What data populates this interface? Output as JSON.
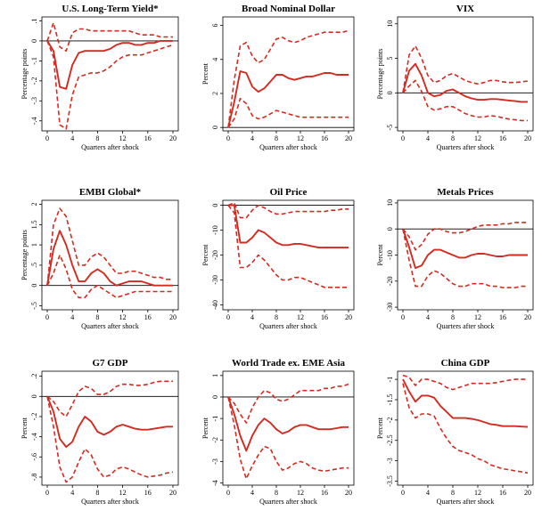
{
  "chart_data": [
    {
      "type": "line",
      "title": "U.S. Long-Term Yield*",
      "xlabel": "Quarters after shock",
      "ylabel": "Percentage points",
      "x": [
        0,
        1,
        2,
        3,
        4,
        5,
        6,
        7,
        8,
        9,
        10,
        11,
        12,
        13,
        14,
        15,
        16,
        17,
        18,
        19,
        20
      ],
      "xticks": [
        0,
        4,
        8,
        12,
        16,
        20
      ],
      "ylim": [
        -0.45,
        0.12
      ],
      "yticks": [
        -0.4,
        -0.3,
        -0.2,
        -0.1,
        0,
        0.1
      ],
      "ytick_labels": [
        "-.4",
        "-.3",
        "-.2",
        "-.1",
        "0",
        ".1"
      ],
      "series": [
        {
          "role": "estimate",
          "style": "solid",
          "values": [
            0,
            -0.05,
            -0.23,
            -0.24,
            -0.12,
            -0.06,
            -0.05,
            -0.05,
            -0.05,
            -0.05,
            -0.04,
            -0.02,
            -0.01,
            -0.01,
            -0.02,
            -0.02,
            -0.01,
            -0.01,
            0,
            0,
            0
          ]
        },
        {
          "role": "upper band",
          "style": "dashed",
          "values": [
            0,
            0.09,
            -0.03,
            -0.05,
            0.04,
            0.06,
            0.06,
            0.05,
            0.05,
            0.05,
            0.05,
            0.05,
            0.05,
            0.05,
            0.04,
            0.03,
            0.03,
            0.03,
            0.02,
            0.02,
            0.02
          ]
        },
        {
          "role": "lower band",
          "style": "dashed",
          "values": [
            0,
            -0.08,
            -0.42,
            -0.44,
            -0.27,
            -0.18,
            -0.17,
            -0.16,
            -0.16,
            -0.15,
            -0.13,
            -0.1,
            -0.08,
            -0.07,
            -0.07,
            -0.07,
            -0.06,
            -0.05,
            -0.04,
            -0.03,
            -0.02
          ]
        }
      ]
    },
    {
      "type": "line",
      "title": "Broad Nominal Dollar",
      "xlabel": "Quarters after shock",
      "ylabel": "Percent",
      "x": [
        0,
        1,
        2,
        3,
        4,
        5,
        6,
        7,
        8,
        9,
        10,
        11,
        12,
        13,
        14,
        15,
        16,
        17,
        18,
        19,
        20
      ],
      "xticks": [
        0,
        4,
        8,
        12,
        16,
        20
      ],
      "ylim": [
        -0.2,
        6.5
      ],
      "yticks": [
        0,
        2,
        4,
        6
      ],
      "ytick_labels": [
        "0",
        "2",
        "4",
        "6"
      ],
      "series": [
        {
          "role": "estimate",
          "style": "solid",
          "values": [
            0,
            1.5,
            3.3,
            3.2,
            2.4,
            2.1,
            2.3,
            2.7,
            3.1,
            3.1,
            2.9,
            2.8,
            2.9,
            3,
            3,
            3.1,
            3.2,
            3.2,
            3.1,
            3.1,
            3.1
          ]
        },
        {
          "role": "upper band",
          "style": "dashed",
          "values": [
            0,
            2.8,
            4.8,
            5.0,
            4.2,
            3.8,
            4.0,
            4.6,
            5.2,
            5.3,
            5.1,
            5.0,
            5.1,
            5.3,
            5.4,
            5.5,
            5.6,
            5.6,
            5.6,
            5.6,
            5.7
          ]
        },
        {
          "role": "lower band",
          "style": "dashed",
          "values": [
            0,
            0.5,
            1.7,
            1.4,
            0.7,
            0.5,
            0.6,
            0.8,
            1.0,
            0.9,
            0.8,
            0.7,
            0.6,
            0.6,
            0.6,
            0.6,
            0.6,
            0.6,
            0.6,
            0.6,
            0.6
          ]
        }
      ]
    },
    {
      "type": "line",
      "title": "VIX",
      "xlabel": "Quarters after shock",
      "ylabel": "Percentage points",
      "x": [
        0,
        1,
        2,
        3,
        4,
        5,
        6,
        7,
        8,
        9,
        10,
        11,
        12,
        13,
        14,
        15,
        16,
        17,
        18,
        19,
        20
      ],
      "xticks": [
        0,
        4,
        8,
        12,
        16,
        20
      ],
      "ylim": [
        -5.5,
        11
      ],
      "yticks": [
        -5,
        0,
        5,
        10
      ],
      "ytick_labels": [
        "-5",
        "0",
        "5",
        "10"
      ],
      "series": [
        {
          "role": "estimate",
          "style": "solid",
          "values": [
            0,
            3.2,
            4.2,
            2.5,
            0,
            -0.5,
            -0.3,
            0.3,
            0.5,
            0,
            -0.5,
            -0.8,
            -1,
            -1,
            -0.9,
            -0.9,
            -1,
            -1.1,
            -1.2,
            -1.3,
            -1.3
          ]
        },
        {
          "role": "upper band",
          "style": "dashed",
          "values": [
            0,
            5.5,
            6.8,
            5.0,
            2.5,
            1.5,
            1.8,
            2.5,
            2.8,
            2.3,
            1.8,
            1.5,
            1.3,
            1.5,
            1.8,
            1.8,
            1.6,
            1.5,
            1.5,
            1.6,
            1.7
          ]
        },
        {
          "role": "lower band",
          "style": "dashed",
          "values": [
            0,
            1.0,
            1.8,
            0.2,
            -2.0,
            -2.5,
            -2.3,
            -2.0,
            -2.0,
            -2.5,
            -3.0,
            -3.3,
            -3.5,
            -3.5,
            -3.3,
            -3.4,
            -3.6,
            -3.8,
            -3.9,
            -4.0,
            -4.0
          ]
        }
      ]
    },
    {
      "type": "line",
      "title": "EMBI Global*",
      "xlabel": "Quarters after shock",
      "ylabel": "Percentage points",
      "x": [
        0,
        1,
        2,
        3,
        4,
        5,
        6,
        7,
        8,
        9,
        10,
        11,
        12,
        13,
        14,
        15,
        16,
        17,
        18,
        19,
        20
      ],
      "xticks": [
        0,
        4,
        8,
        12,
        16,
        20
      ],
      "ylim": [
        -0.6,
        2.1
      ],
      "yticks": [
        -0.5,
        0,
        0.5,
        1,
        1.5,
        2
      ],
      "ytick_labels": [
        "-.5",
        "0",
        ".5",
        "1",
        "1.5",
        "2"
      ],
      "series": [
        {
          "role": "estimate",
          "style": "solid",
          "values": [
            0,
            0.9,
            1.35,
            1.0,
            0.5,
            0.1,
            0.1,
            0.3,
            0.4,
            0.3,
            0.1,
            0,
            0.05,
            0.1,
            0.1,
            0.1,
            0.05,
            0,
            0,
            0,
            0
          ]
        },
        {
          "role": "upper band",
          "style": "dashed",
          "values": [
            0,
            1.5,
            1.9,
            1.7,
            1.1,
            0.5,
            0.5,
            0.7,
            0.8,
            0.7,
            0.5,
            0.3,
            0.3,
            0.35,
            0.35,
            0.3,
            0.25,
            0.2,
            0.2,
            0.15,
            0.15
          ]
        },
        {
          "role": "lower band",
          "style": "dashed",
          "values": [
            0,
            0.3,
            0.75,
            0.4,
            -0.1,
            -0.3,
            -0.3,
            -0.1,
            0,
            -0.1,
            -0.2,
            -0.3,
            -0.25,
            -0.2,
            -0.15,
            -0.15,
            -0.15,
            -0.15,
            -0.15,
            -0.15,
            -0.15
          ]
        }
      ]
    },
    {
      "type": "line",
      "title": "Oil Price",
      "xlabel": "Quarters after shock",
      "ylabel": "Percent",
      "x": [
        0,
        1,
        2,
        3,
        4,
        5,
        6,
        7,
        8,
        9,
        10,
        11,
        12,
        13,
        14,
        15,
        16,
        17,
        18,
        19,
        20
      ],
      "xticks": [
        0,
        4,
        8,
        12,
        16,
        20
      ],
      "ylim": [
        -42,
        2
      ],
      "yticks": [
        -40,
        -30,
        -20,
        -10,
        0
      ],
      "ytick_labels": [
        "-40",
        "-30",
        "-20",
        "-10",
        "0"
      ],
      "series": [
        {
          "role": "estimate",
          "style": "solid",
          "values": [
            0,
            0,
            -15,
            -15,
            -13,
            -10,
            -11,
            -13,
            -15,
            -16,
            -16,
            -15.5,
            -15.5,
            -16,
            -16.5,
            -17,
            -17,
            -17,
            -17,
            -17,
            -17
          ]
        },
        {
          "role": "upper band",
          "style": "dashed",
          "values": [
            0,
            1,
            -5,
            -5,
            -2,
            0,
            -1,
            -2.5,
            -3.5,
            -3.5,
            -3,
            -2.5,
            -2.5,
            -2.5,
            -2.5,
            -2.5,
            -2.5,
            -2,
            -2,
            -1.5,
            -1.5
          ]
        },
        {
          "role": "lower band",
          "style": "dashed",
          "values": [
            0,
            -3,
            -25,
            -25,
            -23,
            -20,
            -22,
            -25,
            -28,
            -30,
            -30,
            -29,
            -29,
            -30,
            -31,
            -32,
            -33,
            -33,
            -33,
            -33,
            -33
          ]
        }
      ]
    },
    {
      "type": "line",
      "title": "Metals Prices",
      "xlabel": "Quarters after shock",
      "ylabel": "Percent",
      "x": [
        0,
        1,
        2,
        3,
        4,
        5,
        6,
        7,
        8,
        9,
        10,
        11,
        12,
        13,
        14,
        15,
        16,
        17,
        18,
        19,
        20
      ],
      "xticks": [
        0,
        4,
        8,
        12,
        16,
        20
      ],
      "ylim": [
        -31,
        11
      ],
      "yticks": [
        -30,
        -20,
        -10,
        0,
        10
      ],
      "ytick_labels": [
        "-30",
        "-20",
        "-10",
        "0",
        "10"
      ],
      "series": [
        {
          "role": "estimate",
          "style": "solid",
          "values": [
            0,
            -7,
            -15,
            -14,
            -10,
            -8,
            -8,
            -9,
            -10,
            -11,
            -11,
            -10,
            -9.5,
            -9.5,
            -10,
            -10.5,
            -10.5,
            -10,
            -10,
            -10,
            -10
          ]
        },
        {
          "role": "upper band",
          "style": "dashed",
          "values": [
            0,
            -3,
            -8,
            -6,
            -2,
            0,
            0,
            -1,
            -1.5,
            -1.5,
            -1,
            0,
            1,
            1.5,
            1.5,
            1.5,
            2,
            2,
            2.5,
            2.5,
            2.5
          ]
        },
        {
          "role": "lower band",
          "style": "dashed",
          "values": [
            0,
            -12,
            -22,
            -22,
            -18,
            -16,
            -17,
            -19,
            -21,
            -22,
            -22,
            -21,
            -21,
            -21,
            -22,
            -22,
            -22.5,
            -22.5,
            -22.5,
            -22,
            -22
          ]
        }
      ]
    },
    {
      "type": "line",
      "title": "G7 GDP",
      "xlabel": "Quarters after shock",
      "ylabel": "Percent",
      "x": [
        0,
        1,
        2,
        3,
        4,
        5,
        6,
        7,
        8,
        9,
        10,
        11,
        12,
        13,
        14,
        15,
        16,
        17,
        18,
        19,
        20
      ],
      "xticks": [
        0,
        4,
        8,
        12,
        16,
        20
      ],
      "ylim": [
        -0.88,
        0.25
      ],
      "yticks": [
        -0.8,
        -0.6,
        -0.4,
        -0.2,
        0,
        0.2
      ],
      "ytick_labels": [
        "-.8",
        "-.6",
        "-.4",
        "-.2",
        "0",
        ".2"
      ],
      "series": [
        {
          "role": "estimate",
          "style": "solid",
          "values": [
            0,
            -0.15,
            -0.42,
            -0.5,
            -0.45,
            -0.3,
            -0.2,
            -0.25,
            -0.35,
            -0.38,
            -0.35,
            -0.3,
            -0.28,
            -0.3,
            -0.32,
            -0.33,
            -0.33,
            -0.32,
            -0.31,
            -0.3,
            -0.3
          ]
        },
        {
          "role": "upper band",
          "style": "dashed",
          "values": [
            0,
            -0.05,
            -0.15,
            -0.2,
            -0.08,
            0.05,
            0.1,
            0.08,
            0.02,
            0.02,
            0.05,
            0.1,
            0.12,
            0.12,
            0.11,
            0.11,
            0.12,
            0.14,
            0.15,
            0.15,
            0.15
          ]
        },
        {
          "role": "lower band",
          "style": "dashed",
          "values": [
            0,
            -0.3,
            -0.7,
            -0.85,
            -0.8,
            -0.65,
            -0.52,
            -0.58,
            -0.72,
            -0.8,
            -0.78,
            -0.72,
            -0.7,
            -0.72,
            -0.75,
            -0.78,
            -0.8,
            -0.79,
            -0.78,
            -0.76,
            -0.75
          ]
        }
      ]
    },
    {
      "type": "line",
      "title": "World Trade ex. EME Asia",
      "xlabel": "Quarters after shock",
      "ylabel": "Percent",
      "x": [
        0,
        1,
        2,
        3,
        4,
        5,
        6,
        7,
        8,
        9,
        10,
        11,
        12,
        13,
        14,
        15,
        16,
        17,
        18,
        19,
        20
      ],
      "xticks": [
        0,
        4,
        8,
        12,
        16,
        20
      ],
      "ylim": [
        -4.1,
        1.2
      ],
      "yticks": [
        -4,
        -3,
        -2,
        -1,
        0,
        1
      ],
      "ytick_labels": [
        "-4",
        "-3",
        "-2",
        "-1",
        "0",
        "1"
      ],
      "series": [
        {
          "role": "estimate",
          "style": "solid",
          "values": [
            0,
            -0.8,
            -1.8,
            -2.5,
            -1.8,
            -1.3,
            -1.0,
            -1.2,
            -1.5,
            -1.7,
            -1.6,
            -1.4,
            -1.3,
            -1.3,
            -1.4,
            -1.5,
            -1.5,
            -1.5,
            -1.45,
            -1.4,
            -1.4
          ]
        },
        {
          "role": "upper band",
          "style": "dashed",
          "values": [
            0,
            -0.3,
            -0.8,
            -1.2,
            -0.5,
            0,
            0.3,
            0.2,
            -0.1,
            -0.2,
            -0.1,
            0.1,
            0.3,
            0.3,
            0.3,
            0.3,
            0.4,
            0.4,
            0.5,
            0.5,
            0.6
          ]
        },
        {
          "role": "lower band",
          "style": "dashed",
          "values": [
            0,
            -1.3,
            -2.9,
            -3.8,
            -3.2,
            -2.7,
            -2.3,
            -2.4,
            -3.0,
            -3.4,
            -3.3,
            -3.1,
            -3.0,
            -3.1,
            -3.3,
            -3.4,
            -3.45,
            -3.4,
            -3.35,
            -3.3,
            -3.3
          ]
        }
      ]
    },
    {
      "type": "line",
      "title": "China GDP",
      "xlabel": "Quarters after shock",
      "ylabel": "Percent",
      "x": [
        0,
        1,
        2,
        3,
        4,
        5,
        6,
        7,
        8,
        9,
        10,
        11,
        12,
        13,
        14,
        15,
        16,
        17,
        18,
        19,
        20
      ],
      "xticks": [
        0,
        4,
        8,
        12,
        16,
        20
      ],
      "ylim": [
        -3.6,
        -0.8
      ],
      "yticks": [
        -3.5,
        -3,
        -2.5,
        -2,
        -1.5,
        -1
      ],
      "ytick_labels": [
        "-3.5",
        "-3",
        "-2.5",
        "-2",
        "-1.5",
        "-1"
      ],
      "series": [
        {
          "role": "estimate",
          "style": "solid",
          "values": [
            -1,
            -1.3,
            -1.55,
            -1.4,
            -1.4,
            -1.45,
            -1.65,
            -1.8,
            -1.95,
            -1.95,
            -1.95,
            -1.97,
            -2.0,
            -2.05,
            -2.1,
            -2.12,
            -2.15,
            -2.15,
            -2.15,
            -2.16,
            -2.17
          ]
        },
        {
          "role": "upper band",
          "style": "dashed",
          "values": [
            -0.9,
            -0.95,
            -1.15,
            -1.0,
            -1.0,
            -1.05,
            -1.1,
            -1.2,
            -1.25,
            -1.2,
            -1.15,
            -1.1,
            -1.1,
            -1.1,
            -1.1,
            -1.08,
            -1.05,
            -1.02,
            -1.0,
            -1.0,
            -1.0
          ]
        },
        {
          "role": "lower band",
          "style": "dashed",
          "values": [
            -1.1,
            -1.7,
            -1.95,
            -1.85,
            -1.85,
            -1.9,
            -2.2,
            -2.45,
            -2.65,
            -2.75,
            -2.8,
            -2.85,
            -2.95,
            -3.0,
            -3.1,
            -3.15,
            -3.2,
            -3.22,
            -3.25,
            -3.27,
            -3.3
          ]
        }
      ]
    }
  ]
}
